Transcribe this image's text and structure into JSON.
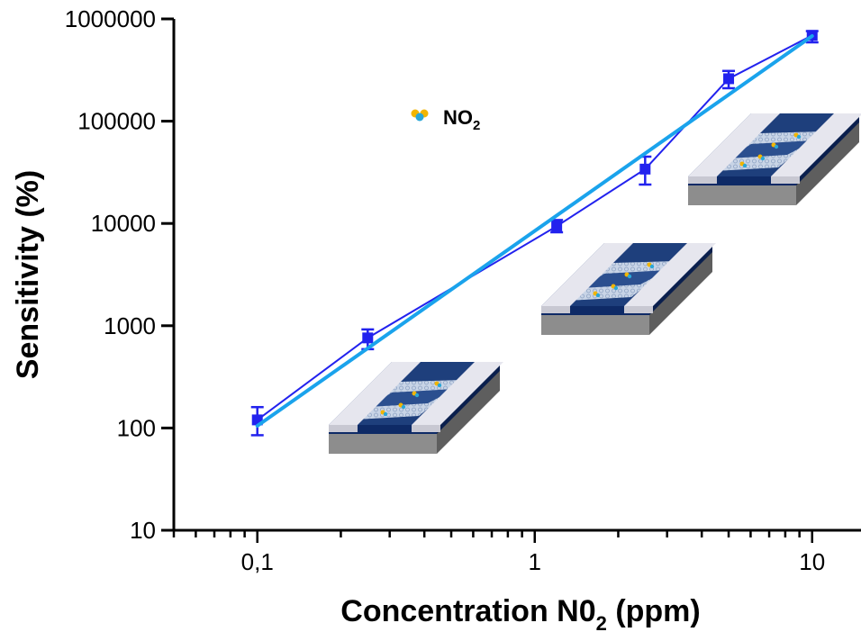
{
  "chart_data": {
    "type": "line",
    "xscale": "log",
    "yscale": "log",
    "xlim": [
      0.05,
      15
    ],
    "ylim": [
      10,
      1000000
    ],
    "xlabel_main": "Concentration N0",
    "xlabel_sub": "2",
    "xlabel_tail": " (ppm)",
    "ylabel": "Sensitivity (%)",
    "x_ticks": [
      {
        "value": 0.1,
        "label": "0,1"
      },
      {
        "value": 1,
        "label": "1"
      },
      {
        "value": 10,
        "label": "10"
      }
    ],
    "y_ticks": [
      {
        "value": 10,
        "label": "10"
      },
      {
        "value": 100,
        "label": "100"
      },
      {
        "value": 1000,
        "label": "1000"
      },
      {
        "value": 10000,
        "label": "10000"
      },
      {
        "value": 100000,
        "label": "100000"
      },
      {
        "value": 1000000,
        "label": "1000000"
      }
    ],
    "legend": {
      "main": "NO",
      "sub": "2"
    },
    "series": [
      {
        "name": "NO2",
        "color": "#2222ee",
        "points": [
          {
            "x": 0.1,
            "y": 120,
            "err_low": 85,
            "err_high": 160
          },
          {
            "x": 0.25,
            "y": 760,
            "err_low": 590,
            "err_high": 920
          },
          {
            "x": 1.2,
            "y": 9400,
            "err_low": 8200,
            "err_high": 10800
          },
          {
            "x": 2.5,
            "y": 34000,
            "err_low": 24000,
            "err_high": 45000
          },
          {
            "x": 5,
            "y": 260000,
            "err_low": 210000,
            "err_high": 310000
          },
          {
            "x": 10,
            "y": 690000,
            "err_low": 590000,
            "err_high": 760000
          }
        ]
      }
    ],
    "fit_line": {
      "color": "#1aa3ec",
      "points": [
        {
          "x": 0.1,
          "y": 105
        },
        {
          "x": 10,
          "y": 680000
        }
      ]
    }
  },
  "colors": {
    "data": "#2222ee",
    "fit": "#1aa3ec"
  }
}
